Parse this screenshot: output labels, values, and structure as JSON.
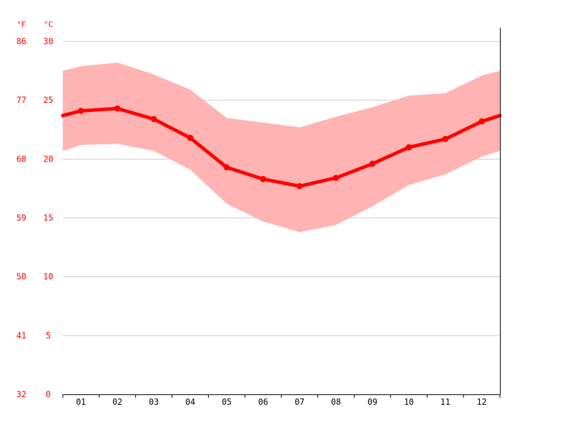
{
  "chart_data": {
    "type": "line",
    "title": "",
    "xlabel": "",
    "ylabel": "",
    "units": {
      "left": "°F",
      "right": "°C"
    },
    "categories": [
      "01",
      "02",
      "03",
      "04",
      "05",
      "06",
      "07",
      "08",
      "09",
      "10",
      "11",
      "12"
    ],
    "y_ticks_c": [
      0,
      5,
      10,
      15,
      20,
      25,
      30
    ],
    "y_ticks_f": [
      32,
      41,
      50,
      59,
      68,
      77,
      86
    ],
    "ylim": [
      0,
      30
    ],
    "grid": true,
    "series": [
      {
        "kind": "mean-line",
        "values": [
          24.1,
          24.3,
          23.4,
          21.8,
          19.3,
          18.3,
          17.7,
          18.4,
          19.6,
          21.0,
          21.7,
          23.2
        ],
        "edge_values": [
          23.7,
          23.7
        ]
      },
      {
        "kind": "range-band",
        "high": [
          27.9,
          28.2,
          27.2,
          25.9,
          23.5,
          23.1,
          22.7,
          23.6,
          24.4,
          25.4,
          25.6,
          27.1
        ],
        "low": [
          21.2,
          21.3,
          20.7,
          19.1,
          16.2,
          14.7,
          13.8,
          14.4,
          16.0,
          17.8,
          18.7,
          20.2
        ],
        "edge_high": [
          27.5,
          27.5
        ],
        "edge_low": [
          20.7,
          20.7
        ]
      }
    ],
    "colors": {
      "line": "#ff0000",
      "band": "#ffb3b3",
      "axis_text": "#ff0000",
      "tick_text": "#000000",
      "grid": "#cccccc",
      "axis": "#000000"
    }
  }
}
